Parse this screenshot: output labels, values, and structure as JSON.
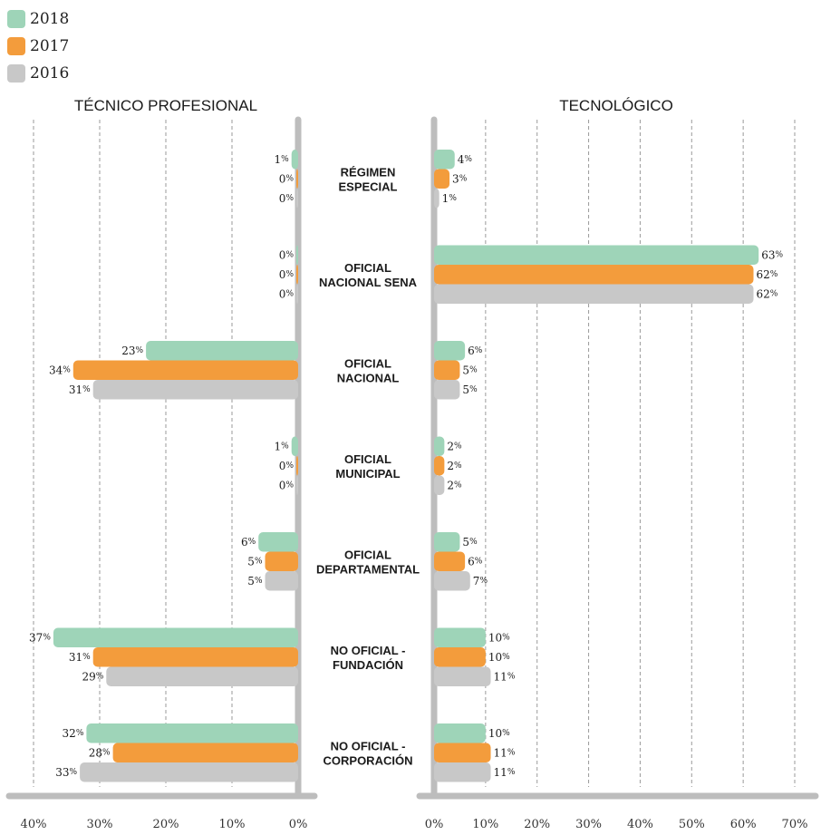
{
  "colors": {
    "2018": "#9ed4b8",
    "2017": "#f39c3c",
    "2016": "#c8c8c8",
    "axis": "#bdbdbd",
    "grid": "#9a9a9a"
  },
  "legend": [
    {
      "label": "2018",
      "color": "#9ed4b8"
    },
    {
      "label": "2017",
      "color": "#f39c3c"
    },
    {
      "label": "2016",
      "color": "#c8c8c8"
    }
  ],
  "chart_data": [
    {
      "type": "bar",
      "orientation": "horizontal",
      "title": "TÉCNICO PROFESIONAL",
      "categories": [
        "RÉGIMEN ESPECIAL",
        "OFICIAL NACIONAL SENA",
        "OFICIAL NACIONAL",
        "OFICIAL MUNICIPAL",
        "OFICIAL DEPARTAMENTAL",
        "NO OFICIAL - FUNDACIÓN",
        "NO OFICIAL - CORPORACIÓN"
      ],
      "series": [
        {
          "name": "2018",
          "values": [
            1,
            0,
            23,
            1,
            6,
            37,
            32
          ]
        },
        {
          "name": "2017",
          "values": [
            0,
            0,
            34,
            0,
            5,
            31,
            28
          ]
        },
        {
          "name": "2016",
          "values": [
            0,
            0,
            31,
            0,
            5,
            29,
            33
          ]
        }
      ],
      "xlim": [
        0,
        40
      ],
      "xticks": [
        "40%",
        "30%",
        "20%",
        "10%",
        "0%"
      ],
      "grid": true
    },
    {
      "type": "bar",
      "orientation": "horizontal",
      "title": "TECNOLÓGICO",
      "categories": [
        "RÉGIMEN ESPECIAL",
        "OFICIAL NACIONAL SENA",
        "OFICIAL NACIONAL",
        "OFICIAL MUNICIPAL",
        "OFICIAL DEPARTAMENTAL",
        "NO OFICIAL - FUNDACIÓN",
        "NO OFICIAL - CORPORACIÓN"
      ],
      "series": [
        {
          "name": "2018",
          "values": [
            4,
            63,
            6,
            2,
            5,
            10,
            10
          ]
        },
        {
          "name": "2017",
          "values": [
            3,
            62,
            5,
            2,
            6,
            10,
            11
          ]
        },
        {
          "name": "2016",
          "values": [
            1,
            62,
            5,
            2,
            7,
            11,
            11
          ]
        }
      ],
      "xlim": [
        0,
        70
      ],
      "xticks": [
        "0%",
        "10%",
        "20%",
        "30%",
        "40%",
        "50%",
        "60%",
        "70%"
      ],
      "grid": true
    }
  ],
  "category_display": [
    [
      "RÉGIMEN",
      "ESPECIAL"
    ],
    [
      "OFICIAL",
      "NACIONAL SENA"
    ],
    [
      "OFICIAL",
      "NACIONAL"
    ],
    [
      "OFICIAL",
      "MUNICIPAL"
    ],
    [
      "OFICIAL",
      "DEPARTAMENTAL"
    ],
    [
      "NO OFICIAL -",
      "FUNDACIÓN"
    ],
    [
      "NO OFICIAL -",
      "CORPORACIÓN"
    ]
  ],
  "percent_sign": "%"
}
